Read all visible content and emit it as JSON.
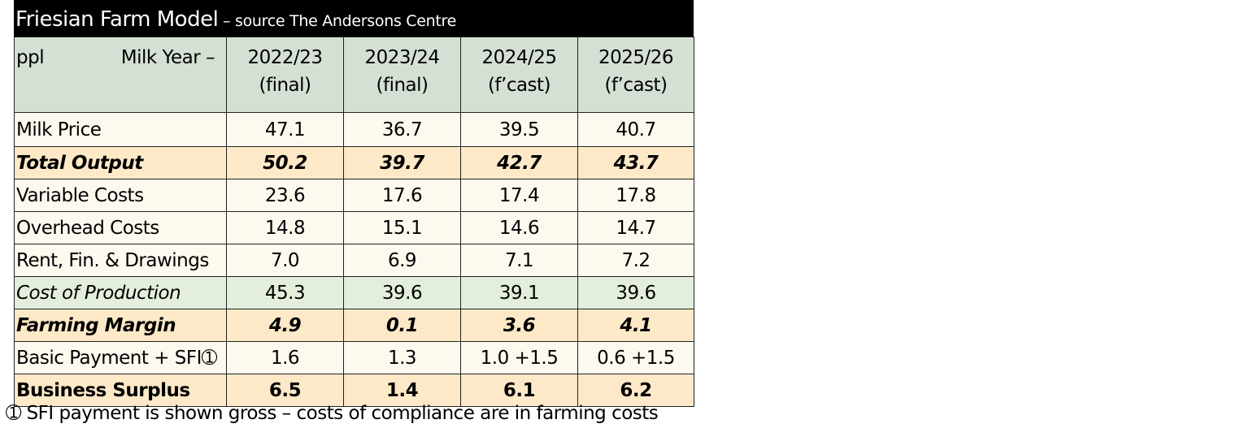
{
  "title": {
    "main": "Friesian Farm Model",
    "sub": " – source The Andersons Centre"
  },
  "header": {
    "unit": "ppl",
    "milk_year_label": "Milk Year –",
    "years": [
      {
        "year": "2022/23",
        "status": "(final)"
      },
      {
        "year": "2023/24",
        "status": "(final)"
      },
      {
        "year": "2024/25",
        "status": "(f’cast)"
      },
      {
        "year": "2025/26",
        "status": "(f’cast)"
      }
    ]
  },
  "rows": [
    {
      "label": "Milk Price",
      "values": [
        "47.1",
        "36.7",
        "39.5",
        "40.7"
      ]
    },
    {
      "label": "Total Output",
      "values": [
        "50.2",
        "39.7",
        "42.7",
        "43.7"
      ]
    },
    {
      "label": "Variable Costs",
      "values": [
        "23.6",
        "17.6",
        "17.4",
        "17.8"
      ]
    },
    {
      "label": "Overhead Costs",
      "values": [
        "14.8",
        "15.1",
        "14.6",
        "14.7"
      ]
    },
    {
      "label": "Rent, Fin. & Drawings",
      "values": [
        "7.0",
        "6.9",
        "7.1",
        "7.2"
      ]
    },
    {
      "label": "Cost of Production",
      "values": [
        "45.3",
        "39.6",
        "39.1",
        "39.6"
      ]
    },
    {
      "label": "Farming Margin",
      "values": [
        "4.9",
        "0.1",
        "3.6",
        "4.1"
      ]
    },
    {
      "label": "Basic Payment + SFI➀",
      "values": [
        "1.6",
        "1.3",
        "1.0 +1.5",
        "0.6 +1.5"
      ]
    },
    {
      "label": "Business Surplus",
      "values": [
        "6.5",
        "1.4",
        "6.1",
        "6.2"
      ]
    }
  ],
  "footnote": "➀ SFI payment is shown gross – costs of compliance are in farming costs"
}
